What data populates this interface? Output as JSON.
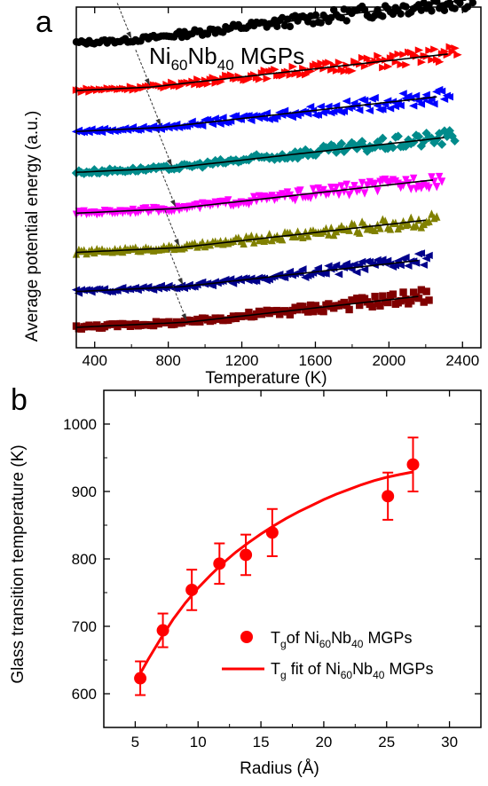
{
  "chart_data": [
    {
      "panel_label": "a",
      "type": "scatter",
      "title_parts": {
        "pre": "Ni",
        "sub1": "60",
        "mid": "Nb",
        "sub2": "40",
        "post": " MGPs"
      },
      "xlabel": "Temperature (K)",
      "ylabel": "Average potential energy (a.u.)",
      "xlim": [
        300,
        2500
      ],
      "xticks": [
        "400",
        "800",
        "1200",
        "1600",
        "2000",
        "2400"
      ],
      "xtick_values": [
        400,
        800,
        1200,
        1600,
        2000,
        2400
      ],
      "ylim": [
        0,
        1
      ],
      "y_ticks_labeled": false,
      "grid": false,
      "series": [
        {
          "color": "#000000",
          "marker": "circle",
          "x_end": 2480,
          "y_start": 0.895,
          "tg": 600,
          "slope1": 2.5e-05,
          "slope2": 6.5e-05,
          "tg_marked": true
        },
        {
          "color": "#ff0000",
          "marker": "triangle-right",
          "x_end": 2380,
          "y_start": 0.755,
          "tg": 700,
          "slope1": 2.5e-05,
          "slope2": 6e-05,
          "tg_marked": true
        },
        {
          "color": "#0000ff",
          "marker": "triangle-left",
          "x_end": 2330,
          "y_start": 0.635,
          "tg": 760,
          "slope1": 2.5e-05,
          "slope2": 6e-05,
          "tg_marked": true
        },
        {
          "color": "#008b8b",
          "marker": "diamond",
          "x_end": 2370,
          "y_start": 0.515,
          "tg": 820,
          "slope1": 2.5e-05,
          "slope2": 6e-05,
          "tg_marked": true
        },
        {
          "color": "#ff00ff",
          "marker": "triangle-down",
          "x_end": 2300,
          "y_start": 0.395,
          "tg": 840,
          "slope1": 2.5e-05,
          "slope2": 6e-05,
          "tg_marked": true
        },
        {
          "color": "#808000",
          "marker": "triangle-up",
          "x_end": 2270,
          "y_start": 0.28,
          "tg": 860,
          "slope1": 2.5e-05,
          "slope2": 6e-05,
          "tg_marked": true
        },
        {
          "color": "#00008b",
          "marker": "triangle-left",
          "x_end": 2220,
          "y_start": 0.165,
          "tg": 880,
          "slope1": 2.5e-05,
          "slope2": 6e-05,
          "tg_marked": true
        },
        {
          "color": "#800000",
          "marker": "square",
          "x_end": 2230,
          "y_start": 0.06,
          "tg": 900,
          "slope1": 2.5e-05,
          "slope2": 6e-05,
          "tg_marked": true
        }
      ]
    },
    {
      "panel_label": "b",
      "type": "scatter",
      "xlabel": "Radius (Å)",
      "ylabel": "Glass transition temperature (K)",
      "xlim": [
        2.5,
        32.5
      ],
      "ylim": [
        550,
        1050
      ],
      "xticks": [
        5,
        10,
        15,
        20,
        25,
        30
      ],
      "yticks": [
        600,
        700,
        800,
        900,
        1000
      ],
      "grid": false,
      "legend_position": "bottom-right",
      "color": "#ff0000",
      "points": [
        {
          "x": 5.4,
          "y": 623,
          "err": 25
        },
        {
          "x": 7.2,
          "y": 694,
          "err": 25
        },
        {
          "x": 9.5,
          "y": 754,
          "err": 30
        },
        {
          "x": 11.7,
          "y": 793,
          "err": 30
        },
        {
          "x": 13.8,
          "y": 806,
          "err": 30
        },
        {
          "x": 15.9,
          "y": 839,
          "err": 35
        },
        {
          "x": 25.1,
          "y": 893,
          "err": 35
        },
        {
          "x": 27.1,
          "y": 940,
          "err": 40
        }
      ],
      "fit": {
        "x": [
          5.4,
          6,
          7,
          8,
          9,
          10,
          11,
          12,
          13,
          14,
          15,
          16,
          17,
          18,
          19,
          20,
          21,
          22,
          23,
          24,
          25,
          26,
          27.1
        ],
        "y": [
          630,
          650,
          681,
          710,
          735,
          757,
          776,
          794,
          810,
          824,
          837,
          849,
          860,
          870,
          879,
          888,
          896,
          903,
          910,
          916,
          921,
          925,
          929
        ]
      },
      "legend": [
        {
          "kind": "marker",
          "pre": "T",
          "sub0": "g",
          "mid": "of Ni",
          "sub1": "60",
          "mid2": "Nb",
          "sub2": "40",
          "post": " MGPs"
        },
        {
          "kind": "line",
          "pre": "T",
          "sub0": "g",
          "mid": " fit of  Ni",
          "sub1": "60",
          "mid2": "Nb",
          "sub2": "40",
          "post": " MGPs"
        }
      ]
    }
  ]
}
